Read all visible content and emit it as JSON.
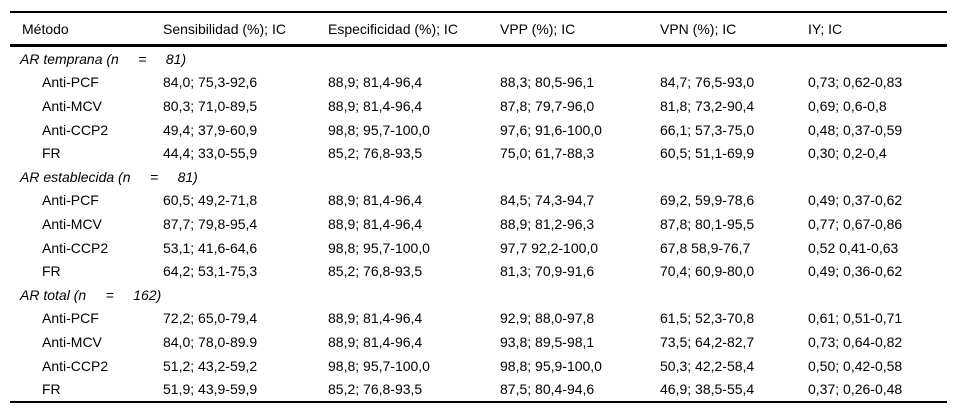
{
  "table": {
    "columns": [
      "Método",
      "Sensibilidad (%); IC",
      "Especificidad (%); IC",
      "VPP (%); IC",
      "VPN (%); IC",
      "IY; IC"
    ],
    "sections": [
      {
        "label": "AR temprana (n     =     81)",
        "rows": [
          {
            "method": "Anti-PCF",
            "values": [
              "84,0; 75,3-92,6",
              "88,9; 81,4-96,4",
              "88,3; 80,5-96,1",
              "84,7; 76,5-93,0",
              "0,73; 0,62-0,83"
            ]
          },
          {
            "method": "Anti-MCV",
            "values": [
              "80,3; 71,0-89,5",
              "88,9; 81,4-96,4",
              "87,8; 79,7-96,0",
              "81,8; 73,2-90,4",
              "0,69; 0,6-0,8"
            ]
          },
          {
            "method": "Anti-CCP2",
            "values": [
              "49,4; 37,9-60,9",
              "98,8; 95,7-100,0",
              "97,6; 91,6-100,0",
              "66,1; 57,3-75,0",
              "0,48; 0,37-0,59"
            ]
          },
          {
            "method": "FR",
            "values": [
              "44,4; 33,0-55,9",
              "85,2; 76,8-93,5",
              "75,0; 61,7-88,3",
              "60,5; 51,1-69,9",
              "0,30; 0,2-0,4"
            ]
          }
        ]
      },
      {
        "label": "AR establecida (n     =     81)",
        "rows": [
          {
            "method": "Anti-PCF",
            "values": [
              "60,5; 49,2-71,8",
              "88,9; 81,4-96,4",
              "84,5; 74,3-94,7",
              "69,2, 59,9-78,6",
              "0,49; 0,37-0,62"
            ]
          },
          {
            "method": "Anti-MCV",
            "values": [
              "87,7; 79,8-95,4",
              "88,9; 81,4-96,4",
              "88,9; 81,2-96,3",
              "87,8; 80,1-95,5",
              "0,77; 0,67-0,86"
            ]
          },
          {
            "method": "Anti-CCP2",
            "values": [
              "53,1; 41,6-64,6",
              "98,8; 95,7-100,0",
              "97,7 92,2-100,0",
              "67,8 58,9-76,7",
              "0,52 0,41-0,63"
            ]
          },
          {
            "method": "FR",
            "values": [
              "64,2; 53,1-75,3",
              "85,2; 76,8-93,5",
              "81,3; 70,9-91,6",
              "70,4; 60,9-80,0",
              "0,49; 0,36-0,62"
            ]
          }
        ]
      },
      {
        "label": "AR total (n     =     162)",
        "rows": [
          {
            "method": "Anti-PCF",
            "values": [
              "72,2; 65,0-79,4",
              "88,9; 81,4-96,4",
              "92,9; 88,0-97,8",
              "61,5; 52,3-70,8",
              "0,61; 0,51-0,71"
            ]
          },
          {
            "method": "Anti-MCV",
            "values": [
              "84,0; 78,0-89.9",
              "88,9; 81,4-96,4",
              "93,8; 89,5-98,1",
              "73,5; 64,2-82,7",
              "0,73; 0,64-0,82"
            ]
          },
          {
            "method": "Anti-CCP2",
            "values": [
              "51,2; 43,2-59,2",
              "98,8; 95,7-100,0",
              "98,8; 95,9-100,0",
              "50,3; 42,2-58,4",
              "0,50; 0,42-0,58"
            ]
          },
          {
            "method": "FR",
            "values": [
              "51,9; 43,9-59,9",
              "85,2; 76,8-93,5",
              "87,5; 80,4-94,6",
              "46,9; 38,5-55,4",
              "0,37; 0,26-0,48"
            ]
          }
        ]
      }
    ]
  }
}
